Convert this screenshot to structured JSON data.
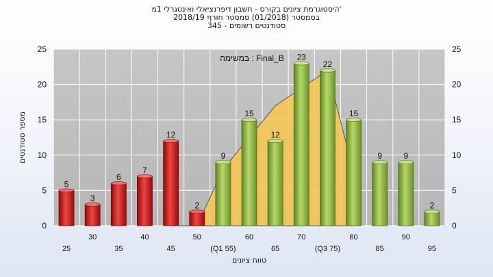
{
  "header": {
    "title_line1": "'היסטוגרמת ציונים בקורס - חשבון דיפרנציאלי ואינטגרלי 1מ",
    "title_line2": "בסמסטר  (01/2018)  סמסטר חורף 2018/19",
    "title_line3": "סטודנטים רשומים - 345"
  },
  "chart_data": {
    "type": "bar",
    "title": "'היסטוגרמת ציונים בקורס - חשבון דיפרנציאלי ואינטגרלי 1מ",
    "subtitle": "בסמסטר  (01/2018)  סמסטר חורף 2018/19 / סטודנטים רשומים - 345",
    "annotation": "Final_B : במשימה",
    "xlabel": "טווח ציונים",
    "ylabel": "מספר סטודנטים",
    "ylim": [
      0,
      25
    ],
    "yticks": [
      0,
      5,
      10,
      15,
      20,
      25
    ],
    "grid": true,
    "categories": [
      "25",
      "30",
      "35",
      "40",
      "45",
      "50",
      "(Q1 55)",
      "60",
      "65",
      "70",
      "(Q3 75)",
      "80",
      "85",
      "90",
      "95"
    ],
    "values": [
      5,
      3,
      6,
      7,
      12,
      2,
      9,
      15,
      12,
      23,
      22,
      15,
      9,
      9,
      2
    ],
    "bar_colors": [
      "#cc1111",
      "#cc1111",
      "#cc1111",
      "#cc1111",
      "#cc1111",
      "#cc1111",
      "#88b43a",
      "#88b43a",
      "#88b43a",
      "#88b43a",
      "#88b43a",
      "#88b43a",
      "#88b43a",
      "#88b43a",
      "#88b43a"
    ],
    "background_area": {
      "type": "area",
      "color": "#f9c74f",
      "x": [
        "45",
        "50",
        "(Q1 55)",
        "60",
        "65",
        "70",
        "(Q3 75)",
        "80"
      ],
      "values": [
        0,
        0,
        8,
        12.5,
        17,
        19.5,
        22,
        7.5
      ]
    },
    "colors": {
      "plot_bg": "#c0c0c0",
      "grid": "#ffffff",
      "fail": "#cc1111",
      "pass": "#88b43a",
      "area": "#f9c74f"
    }
  }
}
